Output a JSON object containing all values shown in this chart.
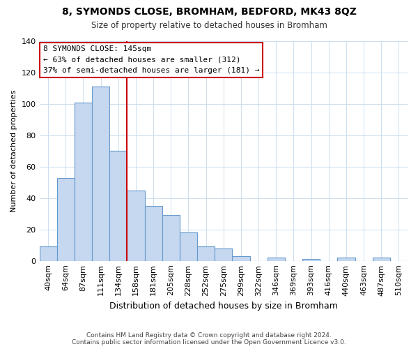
{
  "title": "8, SYMONDS CLOSE, BROMHAM, BEDFORD, MK43 8QZ",
  "subtitle": "Size of property relative to detached houses in Bromham",
  "xlabel": "Distribution of detached houses by size in Bromham",
  "ylabel": "Number of detached properties",
  "bar_labels": [
    "40sqm",
    "64sqm",
    "87sqm",
    "111sqm",
    "134sqm",
    "158sqm",
    "181sqm",
    "205sqm",
    "228sqm",
    "252sqm",
    "275sqm",
    "299sqm",
    "322sqm",
    "346sqm",
    "369sqm",
    "393sqm",
    "416sqm",
    "440sqm",
    "463sqm",
    "487sqm",
    "510sqm"
  ],
  "bar_values": [
    9,
    53,
    101,
    111,
    70,
    45,
    35,
    29,
    18,
    9,
    8,
    3,
    0,
    2,
    0,
    1,
    0,
    2,
    0,
    2,
    0
  ],
  "bar_color": "#c5d8f0",
  "bar_edge_color": "#6699cc",
  "vline_x": 4.5,
  "vline_color": "#cc0000",
  "annotation_title": "8 SYMONDS CLOSE: 145sqm",
  "annotation_line1": "← 63% of detached houses are smaller (312)",
  "annotation_line2": "37% of semi-detached houses are larger (181) →",
  "annotation_box_color": "#ffffff",
  "annotation_box_edge": "#cc0000",
  "ylim": [
    0,
    140
  ],
  "yticks": [
    0,
    20,
    40,
    60,
    80,
    100,
    120,
    140
  ],
  "footnote1": "Contains HM Land Registry data © Crown copyright and database right 2024.",
  "footnote2": "Contains public sector information licensed under the Open Government Licence v3.0.",
  "background_color": "#ffffff",
  "grid_color": "#ccdff0"
}
